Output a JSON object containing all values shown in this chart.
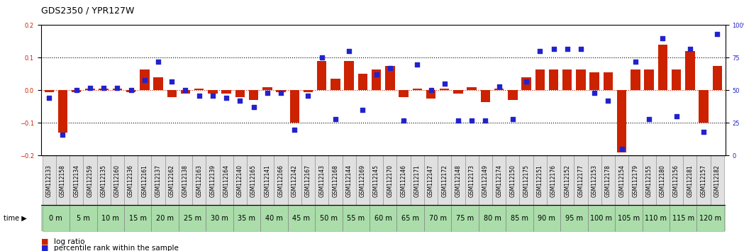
{
  "title": "GDS2350 / YPR127W",
  "gsm_labels": [
    "GSM112133",
    "GSM112158",
    "GSM112134",
    "GSM112159",
    "GSM112135",
    "GSM112160",
    "GSM112136",
    "GSM112161",
    "GSM112137",
    "GSM112162",
    "GSM112138",
    "GSM112163",
    "GSM112139",
    "GSM112164",
    "GSM112140",
    "GSM112165",
    "GSM112141",
    "GSM112166",
    "GSM112142",
    "GSM112167",
    "GSM112143",
    "GSM112168",
    "GSM112144",
    "GSM112169",
    "GSM112145",
    "GSM112170",
    "GSM112146",
    "GSM112171",
    "GSM112147",
    "GSM112172",
    "GSM112148",
    "GSM112173",
    "GSM112149",
    "GSM112174",
    "GSM112150",
    "GSM112175",
    "GSM112151",
    "GSM112176",
    "GSM112152",
    "GSM112177",
    "GSM112153",
    "GSM112178",
    "GSM112154",
    "GSM112179",
    "GSM112155",
    "GSM112180",
    "GSM112156",
    "GSM112181",
    "GSM112157",
    "GSM112182"
  ],
  "time_labels": [
    "0 m",
    "5 m",
    "10 m",
    "15 m",
    "20 m",
    "25 m",
    "30 m",
    "35 m",
    "40 m",
    "45 m",
    "50 m",
    "55 m",
    "60 m",
    "65 m",
    "70 m",
    "75 m",
    "80 m",
    "85 m",
    "90 m",
    "95 m",
    "100 m",
    "105 m",
    "110 m",
    "115 m",
    "120 m"
  ],
  "log_ratio": [
    -0.005,
    -0.13,
    -0.005,
    0.005,
    0.005,
    0.005,
    -0.005,
    0.065,
    0.04,
    -0.02,
    -0.01,
    0.005,
    -0.01,
    -0.01,
    -0.02,
    -0.03,
    0.01,
    -0.005,
    -0.1,
    -0.005,
    0.09,
    0.035,
    0.09,
    0.05,
    0.065,
    0.075,
    -0.02,
    0.005,
    -0.025,
    0.005,
    -0.01,
    0.01,
    -0.035,
    0.005,
    -0.03,
    0.04,
    0.065,
    0.065,
    0.065,
    0.065,
    0.055,
    0.055,
    -0.19,
    0.065,
    0.065,
    0.14,
    0.065,
    0.12,
    -0.1,
    0.075
  ],
  "percentile": [
    44,
    16,
    50,
    52,
    52,
    52,
    50,
    58,
    72,
    57,
    50,
    46,
    46,
    44,
    42,
    37,
    48,
    48,
    20,
    46,
    75,
    28,
    80,
    35,
    62,
    67,
    27,
    70,
    50,
    55,
    27,
    27,
    27,
    53,
    28,
    57,
    80,
    82,
    82,
    82,
    48,
    42,
    5,
    72,
    28,
    90,
    30,
    82,
    18,
    93
  ],
  "ylim_left": [
    -0.2,
    0.2
  ],
  "ylim_right": [
    0,
    100
  ],
  "bar_color": "#cc2200",
  "dot_color": "#2222cc",
  "bg_color": "#ffffff",
  "plot_bg": "#ffffff",
  "xlabel_area_color": "#aaddaa",
  "tick_label_bg": "#dddddd",
  "title_fontsize": 9,
  "tick_fontsize": 6,
  "legend_fontsize": 7.5
}
